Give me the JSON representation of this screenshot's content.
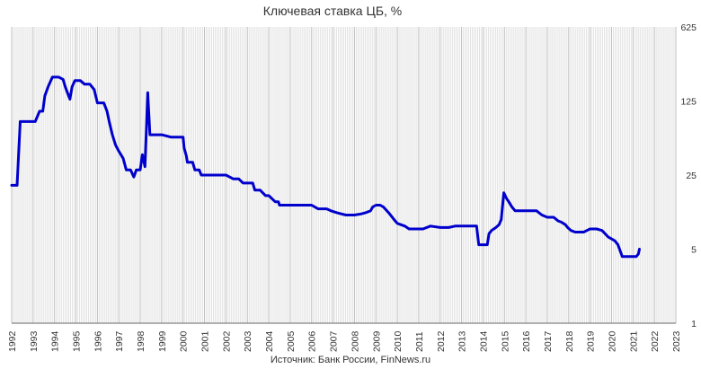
{
  "chart_data": {
    "type": "line",
    "title": "Ключевая ставка ЦБ, %",
    "source": "Источник: Банк России, FinNews.ru",
    "y_scale": "log5",
    "ylim": [
      1,
      625
    ],
    "y_ticks": [
      {
        "value": 1,
        "label": "1"
      },
      {
        "value": 5,
        "label": "5"
      },
      {
        "value": 25,
        "label": "25"
      },
      {
        "value": 125,
        "label": "125"
      },
      {
        "value": 625,
        "label": "625"
      }
    ],
    "xlim": [
      1992,
      2023
    ],
    "x_ticks": [
      "1992",
      "1993",
      "1994",
      "1995",
      "1996",
      "1997",
      "1998",
      "1999",
      "2000",
      "2001",
      "2002",
      "2003",
      "2004",
      "2005",
      "2006",
      "2007",
      "2008",
      "2009",
      "2010",
      "2011",
      "2012",
      "2013",
      "2014",
      "2015",
      "2016",
      "2017",
      "2018",
      "2019",
      "2020",
      "2021",
      "2022",
      "2023"
    ],
    "grid": "vertical-monthly",
    "series": [
      {
        "color": "#0000cc",
        "points": [
          [
            1992.0,
            20
          ],
          [
            1992.25,
            20
          ],
          [
            1992.4,
            80
          ],
          [
            1992.6,
            80
          ],
          [
            1993.0,
            80
          ],
          [
            1993.1,
            80
          ],
          [
            1993.3,
            100
          ],
          [
            1993.45,
            100
          ],
          [
            1993.55,
            140
          ],
          [
            1993.7,
            170
          ],
          [
            1993.9,
            210
          ],
          [
            1994.0,
            210
          ],
          [
            1994.2,
            210
          ],
          [
            1994.4,
            200
          ],
          [
            1994.5,
            170
          ],
          [
            1994.6,
            150
          ],
          [
            1994.72,
            130
          ],
          [
            1994.82,
            170
          ],
          [
            1994.95,
            195
          ],
          [
            1995.2,
            195
          ],
          [
            1995.4,
            180
          ],
          [
            1995.65,
            180
          ],
          [
            1995.85,
            160
          ],
          [
            1996.0,
            120
          ],
          [
            1996.3,
            120
          ],
          [
            1996.45,
            100
          ],
          [
            1996.55,
            80
          ],
          [
            1996.7,
            60
          ],
          [
            1996.85,
            48
          ],
          [
            1997.0,
            42
          ],
          [
            1997.2,
            36
          ],
          [
            1997.35,
            28
          ],
          [
            1997.55,
            28
          ],
          [
            1997.7,
            24
          ],
          [
            1997.82,
            28
          ],
          [
            1998.0,
            28
          ],
          [
            1998.1,
            39
          ],
          [
            1998.22,
            30
          ],
          [
            1998.35,
            150
          ],
          [
            1998.45,
            60
          ],
          [
            1998.55,
            60
          ],
          [
            1999.0,
            60
          ],
          [
            1999.45,
            57
          ],
          [
            2000.0,
            57
          ],
          [
            2000.05,
            45
          ],
          [
            2000.15,
            38
          ],
          [
            2000.2,
            33
          ],
          [
            2000.45,
            33
          ],
          [
            2000.55,
            28
          ],
          [
            2000.75,
            28
          ],
          [
            2000.85,
            25
          ],
          [
            2002.0,
            25
          ],
          [
            2002.35,
            23
          ],
          [
            2002.6,
            23
          ],
          [
            2002.8,
            21
          ],
          [
            2003.25,
            21
          ],
          [
            2003.35,
            18
          ],
          [
            2003.6,
            18
          ],
          [
            2003.85,
            16
          ],
          [
            2004.0,
            16
          ],
          [
            2004.3,
            14
          ],
          [
            2004.45,
            14
          ],
          [
            2004.5,
            13
          ],
          [
            2006.0,
            13
          ],
          [
            2006.3,
            12
          ],
          [
            2006.7,
            12
          ],
          [
            2006.9,
            11.5
          ],
          [
            2007.2,
            11
          ],
          [
            2007.6,
            10.5
          ],
          [
            2008.0,
            10.5
          ],
          [
            2008.3,
            10.75
          ],
          [
            2008.5,
            11
          ],
          [
            2008.75,
            11.5
          ],
          [
            2008.85,
            12.5
          ],
          [
            2009.0,
            13
          ],
          [
            2009.2,
            13
          ],
          [
            2009.35,
            12.5
          ],
          [
            2009.6,
            11
          ],
          [
            2009.85,
            9.5
          ],
          [
            2010.0,
            8.75
          ],
          [
            2010.35,
            8.25
          ],
          [
            2010.55,
            7.75
          ],
          [
            2011.2,
            7.75
          ],
          [
            2011.55,
            8.25
          ],
          [
            2012.0,
            8
          ],
          [
            2012.4,
            8
          ],
          [
            2012.7,
            8.25
          ],
          [
            2013.7,
            8.25
          ],
          [
            2013.8,
            5.5
          ],
          [
            2014.1,
            5.5
          ],
          [
            2014.2,
            5.5
          ],
          [
            2014.28,
            7
          ],
          [
            2014.4,
            7.5
          ],
          [
            2014.6,
            8
          ],
          [
            2014.75,
            8.5
          ],
          [
            2014.85,
            9.5
          ],
          [
            2014.97,
            17
          ],
          [
            2015.1,
            15
          ],
          [
            2015.2,
            14
          ],
          [
            2015.35,
            12.5
          ],
          [
            2015.5,
            11.5
          ],
          [
            2016.5,
            11.5
          ],
          [
            2016.75,
            10.5
          ],
          [
            2017.0,
            10
          ],
          [
            2017.3,
            10
          ],
          [
            2017.5,
            9.25
          ],
          [
            2017.65,
            9
          ],
          [
            2017.85,
            8.5
          ],
          [
            2017.95,
            8
          ],
          [
            2018.1,
            7.5
          ],
          [
            2018.3,
            7.25
          ],
          [
            2018.7,
            7.25
          ],
          [
            2018.85,
            7.5
          ],
          [
            2019.0,
            7.75
          ],
          [
            2019.3,
            7.75
          ],
          [
            2019.55,
            7.5
          ],
          [
            2019.7,
            7
          ],
          [
            2019.85,
            6.5
          ],
          [
            2020.0,
            6.25
          ],
          [
            2020.15,
            6
          ],
          [
            2020.3,
            5.5
          ],
          [
            2020.5,
            4.25
          ],
          [
            2020.65,
            4.25
          ],
          [
            2021.15,
            4.25
          ],
          [
            2021.25,
            4.5
          ],
          [
            2021.3,
            5
          ]
        ]
      }
    ]
  }
}
